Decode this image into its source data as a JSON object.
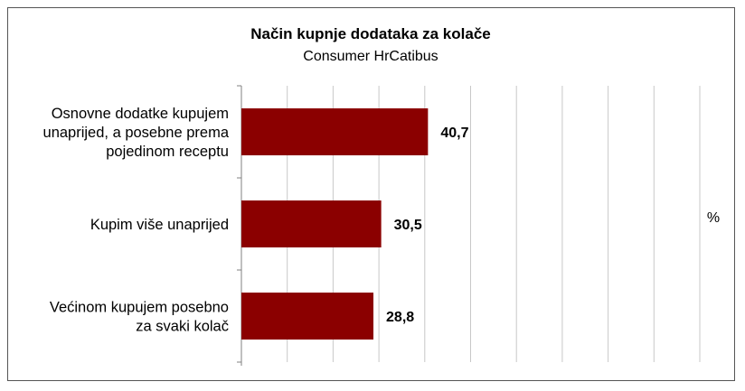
{
  "chart_data": {
    "type": "bar",
    "orientation": "horizontal",
    "title": "Način kupnje dodataka za kolače",
    "subtitle": "Consumer HrCatibus",
    "unit_label": "%",
    "categories": [
      [
        "Osnovne dodatke kupujem",
        "unaprijed, a posebne prema",
        "pojedinom receptu"
      ],
      [
        "Kupim više unaprijed"
      ],
      [
        "Većinom kupujem posebno",
        "za svaki kolač"
      ]
    ],
    "values": [
      40.7,
      30.5,
      28.8
    ],
    "value_labels": [
      "40,7",
      "30,5",
      "28,8"
    ],
    "xlim": [
      0,
      100
    ],
    "grid": true,
    "bar_color": "#8B0000"
  }
}
